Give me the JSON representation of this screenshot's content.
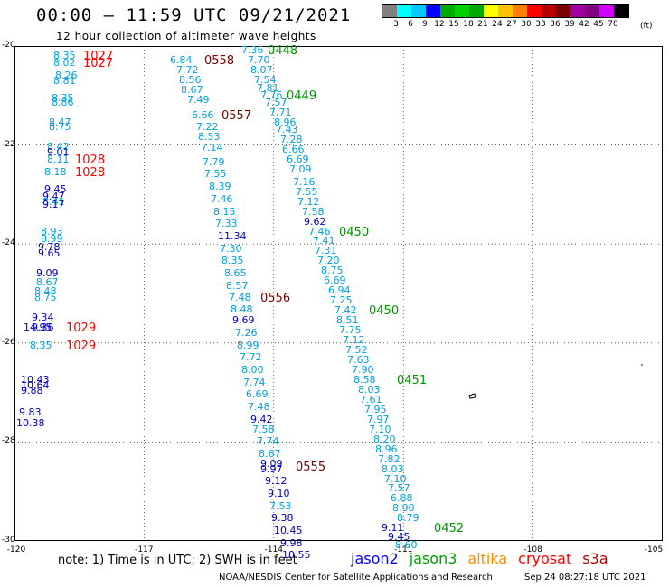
{
  "title": "00:00 – 11:59 UTC 09/21/2021",
  "subtitle": "12 hour collection of altimeter wave heights",
  "legend": {
    "colors": [
      "#808080",
      "#00ffff",
      "#00c8ff",
      "#0000ff",
      "#00aa00",
      "#00d000",
      "#00aa00",
      "#ffff00",
      "#ffc000",
      "#ff8000",
      "#ff0000",
      "#b40000",
      "#780000",
      "#a000a0",
      "#800080",
      "#d000ff",
      "#000000"
    ],
    "labels": [
      "3",
      "6",
      "9",
      "12",
      "15",
      "18",
      "21",
      "24",
      "27",
      "30",
      "33",
      "36",
      "39",
      "42",
      "45",
      "70"
    ],
    "unit": "(ft)"
  },
  "axes": {
    "y_labels": [
      "-20",
      "-22",
      "-24",
      "-26",
      "-28",
      "-30"
    ],
    "x_labels": [
      "-120",
      "-117",
      "-114",
      "-111",
      "-108",
      "-105"
    ]
  },
  "colors": {
    "light": "#00a0dc",
    "dark": "#0000c8",
    "red": "#ff0000",
    "maroon": "#780000",
    "green": "#009600"
  },
  "annotations": [
    {
      "t": "8.35",
      "c": "light",
      "lon": -119.1,
      "lat": -20.2
    },
    {
      "t": "1027",
      "c": "red",
      "lon": -118.4,
      "lat": -20.2,
      "big": true
    },
    {
      "t": "8.02",
      "c": "light",
      "lon": -119.1,
      "lat": -20.35
    },
    {
      "t": "1027",
      "c": "red",
      "lon": -118.4,
      "lat": -20.35,
      "big": true
    },
    {
      "t": "8.26",
      "c": "light",
      "lon": -119.05,
      "lat": -20.6
    },
    {
      "t": "8.81",
      "c": "light",
      "lon": -119.1,
      "lat": -20.72
    },
    {
      "t": "8.35",
      "c": "light",
      "lon": -119.15,
      "lat": -21.05
    },
    {
      "t": "8.86",
      "c": "light",
      "lon": -119.15,
      "lat": -21.15
    },
    {
      "t": "8.47",
      "c": "light",
      "lon": -119.2,
      "lat": -21.55
    },
    {
      "t": "8.75",
      "c": "light",
      "lon": -119.2,
      "lat": -21.65
    },
    {
      "t": "8.42",
      "c": "light",
      "lon": -119.25,
      "lat": -22.05
    },
    {
      "t": "9.01",
      "c": "dark",
      "lon": -119.25,
      "lat": -22.15
    },
    {
      "t": "8.11",
      "c": "light",
      "lon": -119.25,
      "lat": -22.3
    },
    {
      "t": "1028",
      "c": "red",
      "lon": -118.6,
      "lat": -22.3,
      "big": true
    },
    {
      "t": "8.18",
      "c": "light",
      "lon": -119.3,
      "lat": -22.55
    },
    {
      "t": "1028",
      "c": "red",
      "lon": -118.6,
      "lat": -22.55,
      "big": true
    },
    {
      "t": "9.45",
      "c": "dark",
      "lon": -119.3,
      "lat": -22.9
    },
    {
      "t": "9.47",
      "c": "dark",
      "lon": -119.35,
      "lat": -23.05
    },
    {
      "t": "8.41",
      "c": "light",
      "lon": -119.35,
      "lat": -23.15
    },
    {
      "t": "9.17",
      "c": "dark",
      "lon": -119.35,
      "lat": -23.22
    },
    {
      "t": "8.93",
      "c": "light",
      "lon": -119.4,
      "lat": -23.75
    },
    {
      "t": "8.99",
      "c": "light",
      "lon": -119.4,
      "lat": -23.9
    },
    {
      "t": "9.78",
      "c": "dark",
      "lon": -119.45,
      "lat": -24.07
    },
    {
      "t": "9.65",
      "c": "dark",
      "lon": -119.45,
      "lat": -24.2
    },
    {
      "t": "9.09",
      "c": "dark",
      "lon": -119.5,
      "lat": -24.6
    },
    {
      "t": "8.67",
      "c": "light",
      "lon": -119.5,
      "lat": -24.78
    },
    {
      "t": "8.48",
      "c": "light",
      "lon": -119.55,
      "lat": -24.97
    },
    {
      "t": "8.75",
      "c": "light",
      "lon": -119.55,
      "lat": -25.1
    },
    {
      "t": "9.34",
      "c": "dark",
      "lon": -119.6,
      "lat": -25.5
    },
    {
      "t": "14.95",
      "c": "dark",
      "lon": -119.8,
      "lat": -25.7
    },
    {
      "t": "9.36",
      "c": "dark",
      "lon": -119.6,
      "lat": -25.7
    },
    {
      "t": "1029",
      "c": "red",
      "lon": -118.8,
      "lat": -25.7,
      "big": true
    },
    {
      "t": "8.35",
      "c": "light",
      "lon": -119.65,
      "lat": -26.05
    },
    {
      "t": "1029",
      "c": "red",
      "lon": -118.8,
      "lat": -26.05,
      "big": true
    },
    {
      "t": "10.43",
      "c": "dark",
      "lon": -119.85,
      "lat": -26.75
    },
    {
      "t": "10.64",
      "c": "dark",
      "lon": -119.85,
      "lat": -26.87
    },
    {
      "t": "9.88",
      "c": "dark",
      "lon": -119.85,
      "lat": -26.97
    },
    {
      "t": "9.83",
      "c": "dark",
      "lon": -119.9,
      "lat": -27.4
    },
    {
      "t": "10.38",
      "c": "dark",
      "lon": -119.95,
      "lat": -27.63
    },
    {
      "t": "0558",
      "c": "maroon",
      "lon": -115.6,
      "lat": -20.3,
      "big": true
    },
    {
      "t": "6.84",
      "c": "light",
      "lon": -116.4,
      "lat": -20.3
    },
    {
      "t": "7.36",
      "c": "light",
      "lon": -114.75,
      "lat": -20.1
    },
    {
      "t": "0448",
      "c": "green",
      "lon": -114.15,
      "lat": -20.1,
      "big": true
    },
    {
      "t": "7.70",
      "c": "light",
      "lon": -114.6,
      "lat": -20.3
    },
    {
      "t": "7.72",
      "c": "light",
      "lon": -116.25,
      "lat": -20.5
    },
    {
      "t": "8.07",
      "c": "light",
      "lon": -114.55,
      "lat": -20.5
    },
    {
      "t": "8.56",
      "c": "light",
      "lon": -116.2,
      "lat": -20.7
    },
    {
      "t": "7.54",
      "c": "light",
      "lon": -114.45,
      "lat": -20.7
    },
    {
      "t": "8.67",
      "c": "light",
      "lon": -116.15,
      "lat": -20.9
    },
    {
      "t": "7.81",
      "c": "light",
      "lon": -114.4,
      "lat": -20.85
    },
    {
      "t": "0449",
      "c": "green",
      "lon": -113.7,
      "lat": -21.0,
      "big": true
    },
    {
      "t": "7.76",
      "c": "light",
      "lon": -114.3,
      "lat": -21.0
    },
    {
      "t": "7.49",
      "c": "light",
      "lon": -116.0,
      "lat": -21.1
    },
    {
      "t": "7.57",
      "c": "light",
      "lon": -114.2,
      "lat": -21.15
    },
    {
      "t": "6.66",
      "c": "light",
      "lon": -115.9,
      "lat": -21.4
    },
    {
      "t": "0557",
      "c": "maroon",
      "lon": -115.2,
      "lat": -21.4,
      "big": true
    },
    {
      "t": "7.71",
      "c": "light",
      "lon": -114.1,
      "lat": -21.35
    },
    {
      "t": "8.96",
      "c": "light",
      "lon": -114.0,
      "lat": -21.55
    },
    {
      "t": "7.22",
      "c": "light",
      "lon": -115.8,
      "lat": -21.65
    },
    {
      "t": "7.43",
      "c": "light",
      "lon": -113.95,
      "lat": -21.7
    },
    {
      "t": "8.53",
      "c": "light",
      "lon": -115.75,
      "lat": -21.85
    },
    {
      "t": "7.28",
      "c": "light",
      "lon": -113.85,
      "lat": -21.9
    },
    {
      "t": "7.14",
      "c": "light",
      "lon": -115.7,
      "lat": -22.07
    },
    {
      "t": "6.66",
      "c": "light",
      "lon": -113.8,
      "lat": -22.1
    },
    {
      "t": "7.79",
      "c": "light",
      "lon": -115.65,
      "lat": -22.35
    },
    {
      "t": "6.69",
      "c": "light",
      "lon": -113.7,
      "lat": -22.3
    },
    {
      "t": "7.09",
      "c": "light",
      "lon": -113.65,
      "lat": -22.5
    },
    {
      "t": "7.55",
      "c": "light",
      "lon": -115.6,
      "lat": -22.6
    },
    {
      "t": "7.16",
      "c": "light",
      "lon": -113.55,
      "lat": -22.75
    },
    {
      "t": "8.39",
      "c": "light",
      "lon": -115.5,
      "lat": -22.85
    },
    {
      "t": "7.55",
      "c": "light",
      "lon": -113.5,
      "lat": -22.95
    },
    {
      "t": "7.46",
      "c": "light",
      "lon": -115.45,
      "lat": -23.1
    },
    {
      "t": "7.12",
      "c": "light",
      "lon": -113.45,
      "lat": -23.15
    },
    {
      "t": "8.15",
      "c": "light",
      "lon": -115.4,
      "lat": -23.35
    },
    {
      "t": "7.58",
      "c": "light",
      "lon": -113.35,
      "lat": -23.35
    },
    {
      "t": "7.33",
      "c": "light",
      "lon": -115.35,
      "lat": -23.6
    },
    {
      "t": "9.62",
      "c": "dark",
      "lon": -113.3,
      "lat": -23.55
    },
    {
      "t": "11.34",
      "c": "dark",
      "lon": -115.3,
      "lat": -23.85
    },
    {
      "t": "7.46",
      "c": "light",
      "lon": -113.2,
      "lat": -23.75
    },
    {
      "t": "0450",
      "c": "green",
      "lon": -112.5,
      "lat": -23.75,
      "big": true
    },
    {
      "t": "7.41",
      "c": "light",
      "lon": -113.1,
      "lat": -23.95
    },
    {
      "t": "7.30",
      "c": "light",
      "lon": -115.25,
      "lat": -24.1
    },
    {
      "t": "7.31",
      "c": "light",
      "lon": -113.05,
      "lat": -24.15
    },
    {
      "t": "8.35",
      "c": "light",
      "lon": -115.2,
      "lat": -24.35
    },
    {
      "t": "7.20",
      "c": "light",
      "lon": -113.0,
      "lat": -24.35
    },
    {
      "t": "8.65",
      "c": "light",
      "lon": -115.15,
      "lat": -24.6
    },
    {
      "t": "8.75",
      "c": "light",
      "lon": -112.9,
      "lat": -24.55
    },
    {
      "t": "8.57",
      "c": "light",
      "lon": -115.1,
      "lat": -24.85
    },
    {
      "t": "6.69",
      "c": "light",
      "lon": -112.85,
      "lat": -24.75
    },
    {
      "t": "7.48",
      "c": "light",
      "lon": -115.05,
      "lat": -25.1
    },
    {
      "t": "0556",
      "c": "maroon",
      "lon": -114.3,
      "lat": -25.1,
      "big": true
    },
    {
      "t": "6.94",
      "c": "light",
      "lon": -112.75,
      "lat": -24.95
    },
    {
      "t": "8.48",
      "c": "light",
      "lon": -115.0,
      "lat": -25.32
    },
    {
      "t": "7.25",
      "c": "light",
      "lon": -112.7,
      "lat": -25.15
    },
    {
      "t": "9.69",
      "c": "dark",
      "lon": -114.95,
      "lat": -25.55
    },
    {
      "t": "7.42",
      "c": "light",
      "lon": -112.6,
      "lat": -25.35
    },
    {
      "t": "0450",
      "c": "green",
      "lon": -111.8,
      "lat": -25.35,
      "big": true
    },
    {
      "t": "8.51",
      "c": "light",
      "lon": -112.55,
      "lat": -25.55
    },
    {
      "t": "7.26",
      "c": "light",
      "lon": -114.9,
      "lat": -25.8
    },
    {
      "t": "7.75",
      "c": "light",
      "lon": -112.5,
      "lat": -25.75
    },
    {
      "t": "8.99",
      "c": "light",
      "lon": -114.85,
      "lat": -26.05
    },
    {
      "t": "7.12",
      "c": "light",
      "lon": -112.4,
      "lat": -25.95
    },
    {
      "t": "7.52",
      "c": "light",
      "lon": -112.35,
      "lat": -26.15
    },
    {
      "t": "7.72",
      "c": "light",
      "lon": -114.8,
      "lat": -26.3
    },
    {
      "t": "7.63",
      "c": "light",
      "lon": -112.3,
      "lat": -26.35
    },
    {
      "t": "8.00",
      "c": "light",
      "lon": -114.75,
      "lat": -26.55
    },
    {
      "t": "7.90",
      "c": "light",
      "lon": -112.2,
      "lat": -26.55
    },
    {
      "t": "8.58",
      "c": "light",
      "lon": -112.15,
      "lat": -26.75
    },
    {
      "t": "0451",
      "c": "green",
      "lon": -111.15,
      "lat": -26.75,
      "big": true
    },
    {
      "t": "7.74",
      "c": "light",
      "lon": -114.7,
      "lat": -26.8
    },
    {
      "t": "8.03",
      "c": "light",
      "lon": -112.05,
      "lat": -26.95
    },
    {
      "t": "6.69",
      "c": "light",
      "lon": -114.65,
      "lat": -27.05
    },
    {
      "t": "7.61",
      "c": "light",
      "lon": -112.0,
      "lat": -27.15
    },
    {
      "t": "7.48",
      "c": "light",
      "lon": -114.6,
      "lat": -27.3
    },
    {
      "t": "7.95",
      "c": "light",
      "lon": -111.9,
      "lat": -27.35
    },
    {
      "t": "9.42",
      "c": "dark",
      "lon": -114.55,
      "lat": -27.55
    },
    {
      "t": "7.97",
      "c": "light",
      "lon": -111.85,
      "lat": -27.55
    },
    {
      "t": "7.58",
      "c": "light",
      "lon": -114.5,
      "lat": -27.75
    },
    {
      "t": "7.10",
      "c": "light",
      "lon": -111.8,
      "lat": -27.75
    },
    {
      "t": "7.74",
      "c": "light",
      "lon": -114.4,
      "lat": -28.0
    },
    {
      "t": "8.20",
      "c": "light",
      "lon": -111.7,
      "lat": -27.95
    },
    {
      "t": "8.96",
      "c": "light",
      "lon": -111.65,
      "lat": -28.15
    },
    {
      "t": "8.67",
      "c": "light",
      "lon": -114.35,
      "lat": -28.25
    },
    {
      "t": "7.82",
      "c": "light",
      "lon": -111.6,
      "lat": -28.35
    },
    {
      "t": "9.09",
      "c": "dark",
      "lon": -114.3,
      "lat": -28.45
    },
    {
      "t": "9.97",
      "c": "dark",
      "lon": -114.3,
      "lat": -28.55
    },
    {
      "t": "0555",
      "c": "maroon",
      "lon": -113.5,
      "lat": -28.5,
      "big": true
    },
    {
      "t": "8.03",
      "c": "light",
      "lon": -111.5,
      "lat": -28.55
    },
    {
      "t": "9.12",
      "c": "dark",
      "lon": -114.2,
      "lat": -28.8
    },
    {
      "t": "7.10",
      "c": "light",
      "lon": -111.45,
      "lat": -28.75
    },
    {
      "t": "7.57",
      "c": "light",
      "lon": -111.35,
      "lat": -28.95
    },
    {
      "t": "9.10",
      "c": "dark",
      "lon": -114.15,
      "lat": -29.05
    },
    {
      "t": "6.88",
      "c": "light",
      "lon": -111.3,
      "lat": -29.15
    },
    {
      "t": "7.53",
      "c": "light",
      "lon": -114.1,
      "lat": -29.3
    },
    {
      "t": "8.90",
      "c": "light",
      "lon": -111.25,
      "lat": -29.35
    },
    {
      "t": "9.38",
      "c": "dark",
      "lon": -114.05,
      "lat": -29.55
    },
    {
      "t": "8.79",
      "c": "light",
      "lon": -111.15,
      "lat": -29.55
    },
    {
      "t": "10.45",
      "c": "dark",
      "lon": -114.0,
      "lat": -29.8
    },
    {
      "t": "9.11",
      "c": "dark",
      "lon": -111.5,
      "lat": -29.75
    },
    {
      "t": "0452",
      "c": "green",
      "lon": -110.3,
      "lat": -29.75,
      "big": true
    },
    {
      "t": "9.98",
      "c": "dark",
      "lon": -113.85,
      "lat": -30.05
    },
    {
      "t": "9.45",
      "c": "dark",
      "lon": -111.35,
      "lat": -29.92
    },
    {
      "t": "10.55",
      "c": "dark",
      "lon": -113.8,
      "lat": -30.3
    },
    {
      "t": "8.60",
      "c": "light",
      "lon": -111.2,
      "lat": -30.1
    }
  ],
  "note": "note: 1) Time is in UTC; 2) SWH is in feet",
  "satellites": [
    {
      "name": "jason2",
      "color": "#0000ff"
    },
    {
      "name": "jason3",
      "color": "#00a000"
    },
    {
      "name": "altika",
      "color": "#ff8c00"
    },
    {
      "name": "cryosat",
      "color": "#ff0000"
    },
    {
      "name": "s3a",
      "color": "#b40000"
    }
  ],
  "credit": "NOAA/NESDIS Center for Satellite Applications and Research",
  "timestamp": "Sep 24 08:27:18 UTC 2021"
}
